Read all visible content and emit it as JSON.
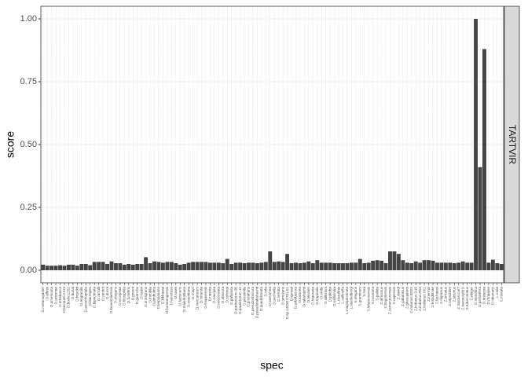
{
  "chart_data": {
    "type": "bar",
    "x_label": "spec",
    "y_label": "score",
    "facet": "TARTVIR",
    "categories": [
      "D.melanogaster",
      "D.affinis",
      "D.americana",
      "D.arizonae",
      "D.athabasca",
      "D.bocqueti.2313",
      "D.bocki.2252",
      "D.burlai",
      "D.busckii",
      "D.eugracilis",
      "D.austroheptala",
      "D.biarmipes",
      "D.bipectinata",
      "D.carrolli",
      "D.cardini",
      "D.dunni",
      "D.kuoeohiaensis",
      "D.elegans",
      "D.ercepeae",
      "D.ficusphila",
      "D.funebris",
      "D.greeni",
      "D.guanche",
      "D.hydei",
      "D.immigrans",
      "D.innubila",
      "D.jambulina",
      "D.kepulauana",
      "D.kikkawai",
      "D.kurseongensis",
      "D.lacertosa",
      "D.lowei",
      "D.lutescens",
      "D.malerkotliana",
      "D.mauritiana",
      "D.mayri",
      "D.mercatorum",
      "D.miranda",
      "D.mojavensis",
      "D.nasuta",
      "D.navojoa",
      "D.neocordata",
      "D.obscura",
      "D.oshimai",
      "D.pallidosa",
      "D.paulistorum.06",
      "D.paulistorum.12",
      "D.persimilis",
      "D.prosaltans",
      "D.pseudoobscura",
      "D.pseudotakahashii",
      "D.quadrilineata",
      "D.rufa",
      "D.santomea",
      "D.sechellia",
      "D.serrata",
      "D.simulans",
      "D.sp.14030.0761.01",
      "D.sproati",
      "D.subobscura",
      "D.sucinea",
      "D.takahashii",
      "D.teissieri",
      "D.triauraria",
      "D.tropicalis",
      "D.virilis",
      "D.willistoni",
      "D.yakuba",
      "D.vallismaia",
      "L.clarofinis",
      "L.collinella",
      "L.magnipectinata",
      "L.stackelbergi",
      "S.elegans",
      "S.graminum",
      "S.hsui",
      "S.lebanonensis",
      "S.montana",
      "S.pallida",
      "Z.africanus",
      "Z.bogoriensis",
      "Z.camerounensis",
      "Z.capensis",
      "Z.davidi",
      "Z.gabonicus",
      "Z.ghesquierei",
      "Z.indianus.BS02",
      "Z.indianus.D18",
      "Z.indianus.R04",
      "Z.indianus.V01",
      "Z.inermis",
      "Z.kolodkinae",
      "Z.lachaisei",
      "Z.nigranus",
      "Z.ornatus",
      "Z.sepsoides",
      "Z.taronus",
      "Z.tsacasi.car7",
      "Z.tsacasi.jd01t",
      "Z.tuberculatus",
      "Z.vittiger",
      "D.mimetica",
      "D.pectinifera",
      "D.testacea",
      "D.rhopaloa",
      "D.nikananu",
      "L.varia",
      "C.costata"
    ],
    "values": [
      0.022,
      0.018,
      0.018,
      0.018,
      0.02,
      0.018,
      0.022,
      0.022,
      0.018,
      0.025,
      0.025,
      0.02,
      0.033,
      0.033,
      0.033,
      0.025,
      0.035,
      0.028,
      0.028,
      0.022,
      0.025,
      0.022,
      0.025,
      0.025,
      0.052,
      0.028,
      0.035,
      0.033,
      0.03,
      0.033,
      0.033,
      0.028,
      0.022,
      0.025,
      0.03,
      0.033,
      0.033,
      0.033,
      0.033,
      0.03,
      0.03,
      0.03,
      0.028,
      0.045,
      0.025,
      0.03,
      0.03,
      0.028,
      0.03,
      0.03,
      0.028,
      0.03,
      0.033,
      0.075,
      0.033,
      0.035,
      0.033,
      0.065,
      0.028,
      0.03,
      0.028,
      0.03,
      0.035,
      0.028,
      0.04,
      0.03,
      0.03,
      0.03,
      0.028,
      0.028,
      0.028,
      0.028,
      0.03,
      0.03,
      0.045,
      0.028,
      0.03,
      0.038,
      0.04,
      0.038,
      0.028,
      0.075,
      0.075,
      0.065,
      0.04,
      0.03,
      0.028,
      0.035,
      0.03,
      0.04,
      0.04,
      0.038,
      0.03,
      0.03,
      0.03,
      0.03,
      0.028,
      0.03,
      0.035,
      0.03,
      0.03,
      1.0,
      0.41,
      0.88,
      0.03,
      0.042,
      0.028,
      0.025
    ],
    "color": "#444444",
    "ylim": [
      -0.05,
      1.05
    ],
    "yticks": [
      {
        "value": 0,
        "label": "0.00"
      },
      {
        "value": 0.25,
        "label": "0.25"
      },
      {
        "value": 0.5,
        "label": "0.50"
      },
      {
        "value": 0.75,
        "label": "0.75"
      },
      {
        "value": 1,
        "label": "1.00"
      }
    ],
    "grid": true
  }
}
